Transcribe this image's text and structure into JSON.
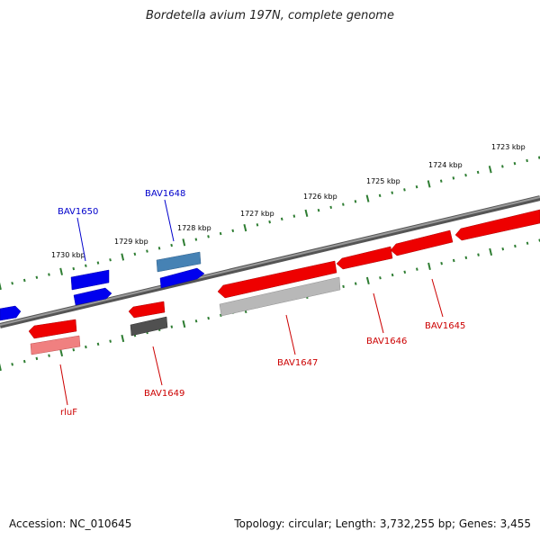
{
  "title": "Bordetella avium 197N, complete genome",
  "footer": {
    "accession": "Accession: NC_010645",
    "stats": "Topology: circular; Length: 3,732,255 bp; Genes: 3,455"
  },
  "colors": {
    "forward_gene": "#ff0000",
    "reverse_gene": "#0000ff",
    "forward_rna": "#4682b4",
    "pseudo_gene": "#808080",
    "backbone": "#808080",
    "tick": "#2e7d32",
    "forward_label": "#cc0000",
    "reverse_label": "#0000cc",
    "kbp_label": "#000000"
  },
  "kbp_ticks": [
    "1723 kbp",
    "1724 kbp",
    "1725 kbp",
    "1726 kbp",
    "1727 kbp",
    "1728 kbp",
    "1729 kbp",
    "1730 kbp"
  ],
  "gene_labels": [
    {
      "text": "BAV1650",
      "strand": "reverse"
    },
    {
      "text": "BAV1648",
      "strand": "reverse"
    },
    {
      "text": "rluF",
      "strand": "forward"
    },
    {
      "text": "BAV1649",
      "strand": "forward"
    },
    {
      "text": "BAV1647",
      "strand": "forward"
    },
    {
      "text": "BAV1646",
      "strand": "forward"
    },
    {
      "text": "BAV1645",
      "strand": "forward"
    }
  ]
}
